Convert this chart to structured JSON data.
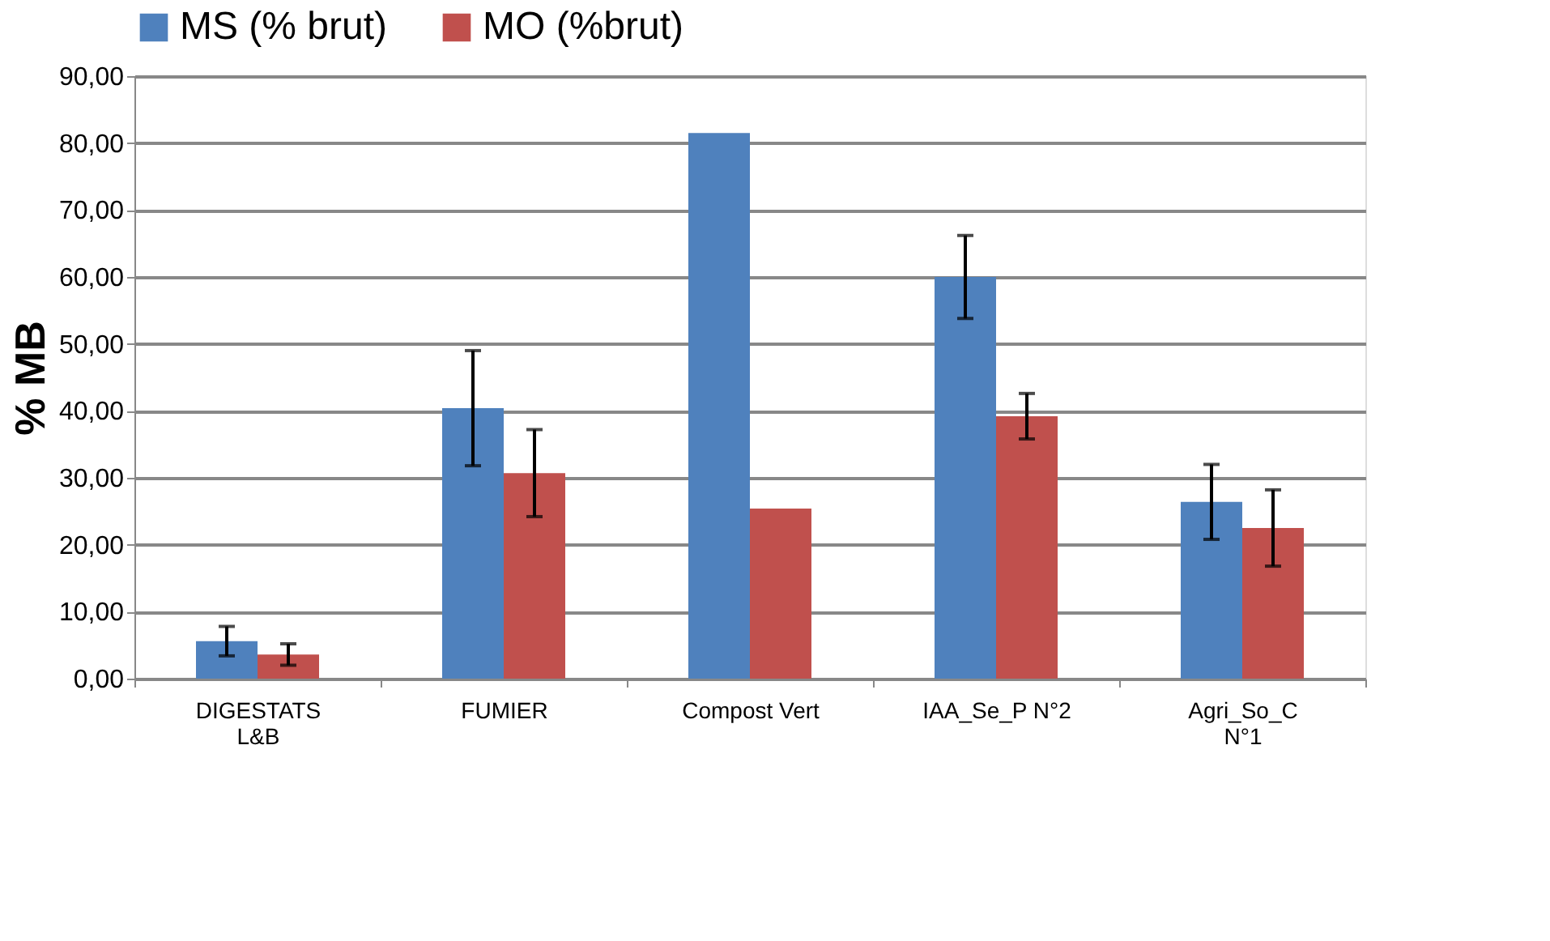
{
  "chart_data": {
    "type": "bar",
    "ylabel": "% MB",
    "categories": [
      "DIGESTATS\nL&B",
      "FUMIER",
      "Compost Vert",
      "IAA_Se_P N°2",
      "Agri_So_C\nN°1"
    ],
    "series": [
      {
        "name": "MS (% brut)",
        "color": "#4f81bd",
        "values": [
          5.6,
          40.4,
          81.5,
          60.0,
          26.4
        ],
        "errors": [
          2.2,
          8.6,
          null,
          6.2,
          5.6
        ]
      },
      {
        "name": "MO (%brut)",
        "color": "#c0504d",
        "values": [
          3.6,
          30.7,
          25.4,
          39.2,
          22.5
        ],
        "errors": [
          1.6,
          6.5,
          null,
          3.4,
          5.7
        ]
      }
    ],
    "ylim": [
      0,
      90
    ],
    "yticks": [
      {
        "value": 0,
        "label": "0,00"
      },
      {
        "value": 10,
        "label": "10,00"
      },
      {
        "value": 20,
        "label": "20,00"
      },
      {
        "value": 30,
        "label": "30,00"
      },
      {
        "value": 40,
        "label": "40,00"
      },
      {
        "value": 50,
        "label": "50,00"
      },
      {
        "value": 60,
        "label": "60,00"
      },
      {
        "value": 70,
        "label": "70,00"
      },
      {
        "value": 80,
        "label": "80,00"
      },
      {
        "value": 90,
        "label": "90,00"
      }
    ],
    "grid": "y",
    "legend": "top"
  }
}
